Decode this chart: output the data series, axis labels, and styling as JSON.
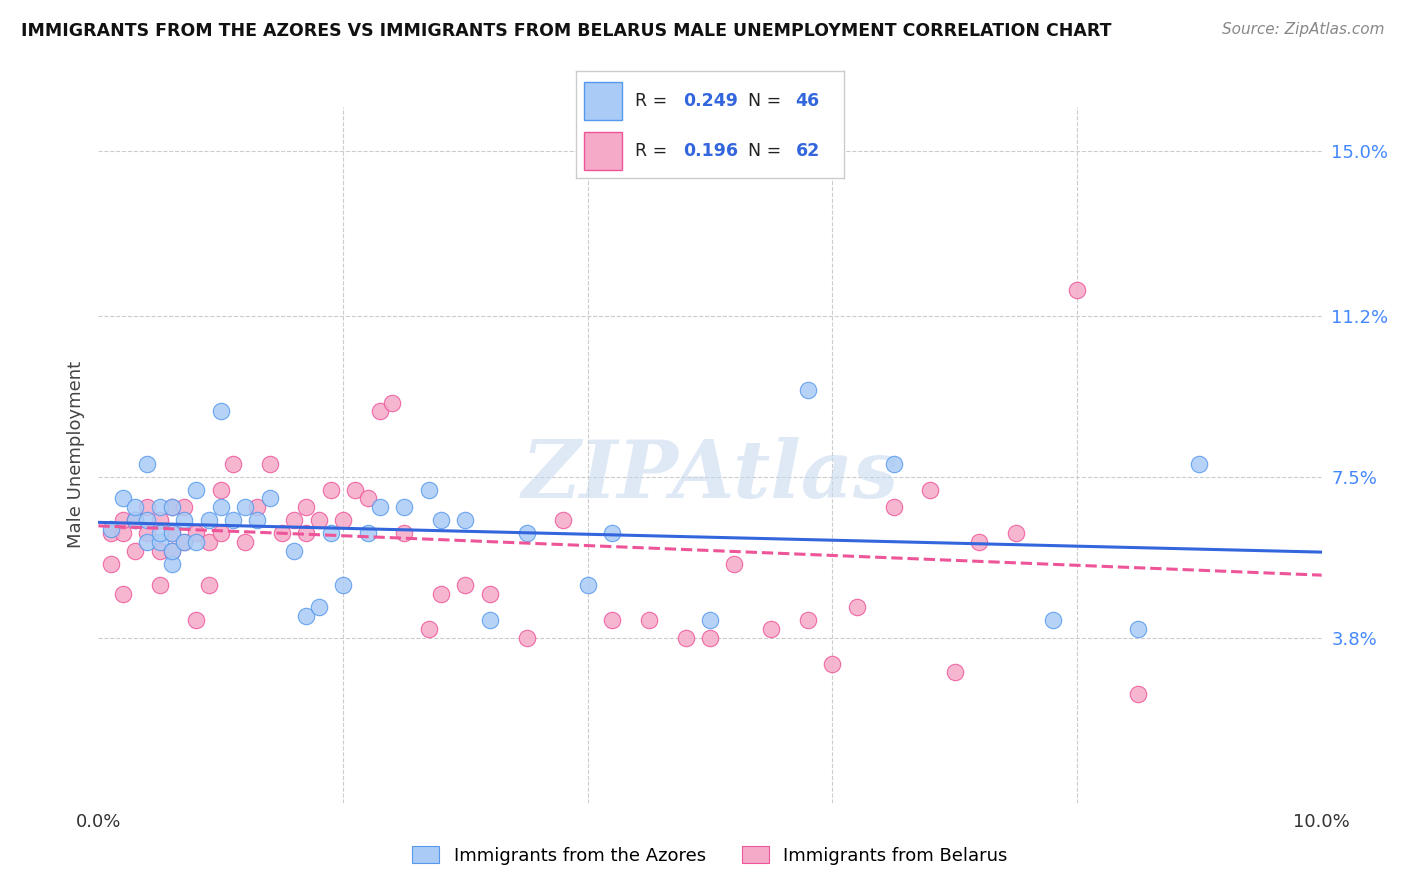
{
  "title": "IMMIGRANTS FROM THE AZORES VS IMMIGRANTS FROM BELARUS MALE UNEMPLOYMENT CORRELATION CHART",
  "source": "Source: ZipAtlas.com",
  "ylabel": "Male Unemployment",
  "x_min": 0.0,
  "x_max": 0.1,
  "y_min": 0.0,
  "y_max": 0.16,
  "y_tick_labels_right": [
    "3.8%",
    "7.5%",
    "11.2%",
    "15.0%"
  ],
  "y_tick_vals_right": [
    0.038,
    0.075,
    0.112,
    0.15
  ],
  "watermark": "ZIPAtlas",
  "azores_color": "#aacbf5",
  "belarus_color": "#f5aac8",
  "azores_edge_color": "#5599ee",
  "belarus_edge_color": "#ee5599",
  "azores_line_color": "#3366dd",
  "belarus_line_color": "#ee5599",
  "azores_R": 0.249,
  "azores_N": 46,
  "belarus_R": 0.196,
  "belarus_N": 62,
  "azores_scatter_x": [
    0.001,
    0.002,
    0.003,
    0.003,
    0.004,
    0.004,
    0.004,
    0.005,
    0.005,
    0.005,
    0.006,
    0.006,
    0.006,
    0.006,
    0.007,
    0.007,
    0.008,
    0.008,
    0.009,
    0.01,
    0.01,
    0.011,
    0.012,
    0.013,
    0.014,
    0.016,
    0.017,
    0.018,
    0.019,
    0.02,
    0.022,
    0.023,
    0.025,
    0.027,
    0.028,
    0.03,
    0.032,
    0.035,
    0.04,
    0.042,
    0.05,
    0.058,
    0.065,
    0.078,
    0.085,
    0.09
  ],
  "azores_scatter_y": [
    0.063,
    0.07,
    0.065,
    0.068,
    0.06,
    0.065,
    0.078,
    0.06,
    0.062,
    0.068,
    0.055,
    0.058,
    0.062,
    0.068,
    0.06,
    0.065,
    0.06,
    0.072,
    0.065,
    0.068,
    0.09,
    0.065,
    0.068,
    0.065,
    0.07,
    0.058,
    0.043,
    0.045,
    0.062,
    0.05,
    0.062,
    0.068,
    0.068,
    0.072,
    0.065,
    0.065,
    0.042,
    0.062,
    0.05,
    0.062,
    0.042,
    0.095,
    0.078,
    0.042,
    0.04,
    0.078
  ],
  "belarus_scatter_x": [
    0.001,
    0.001,
    0.002,
    0.002,
    0.002,
    0.003,
    0.003,
    0.004,
    0.004,
    0.005,
    0.005,
    0.005,
    0.006,
    0.006,
    0.006,
    0.007,
    0.007,
    0.008,
    0.008,
    0.009,
    0.009,
    0.01,
    0.01,
    0.011,
    0.012,
    0.013,
    0.014,
    0.015,
    0.016,
    0.017,
    0.017,
    0.018,
    0.019,
    0.02,
    0.021,
    0.022,
    0.023,
    0.024,
    0.025,
    0.027,
    0.028,
    0.03,
    0.032,
    0.035,
    0.038,
    0.04,
    0.042,
    0.045,
    0.048,
    0.05,
    0.052,
    0.055,
    0.058,
    0.06,
    0.062,
    0.065,
    0.068,
    0.07,
    0.072,
    0.075,
    0.08,
    0.085
  ],
  "belarus_scatter_y": [
    0.055,
    0.062,
    0.048,
    0.062,
    0.065,
    0.058,
    0.065,
    0.062,
    0.068,
    0.05,
    0.058,
    0.065,
    0.058,
    0.062,
    0.068,
    0.06,
    0.068,
    0.042,
    0.062,
    0.05,
    0.06,
    0.062,
    0.072,
    0.078,
    0.06,
    0.068,
    0.078,
    0.062,
    0.065,
    0.062,
    0.068,
    0.065,
    0.072,
    0.065,
    0.072,
    0.07,
    0.09,
    0.092,
    0.062,
    0.04,
    0.048,
    0.05,
    0.048,
    0.038,
    0.065,
    0.155,
    0.042,
    0.042,
    0.038,
    0.038,
    0.055,
    0.04,
    0.042,
    0.032,
    0.045,
    0.068,
    0.072,
    0.03,
    0.06,
    0.062,
    0.118,
    0.025
  ]
}
